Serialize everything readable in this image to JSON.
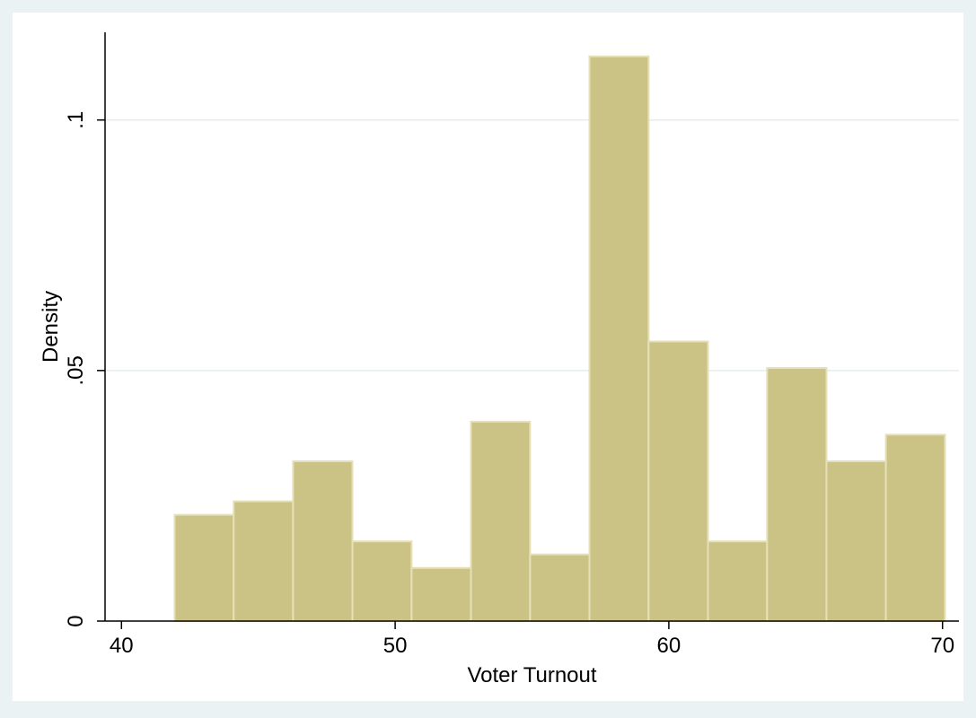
{
  "chart_data": {
    "type": "bar",
    "title": "",
    "xlabel": "Voter Turnout",
    "ylabel": "Density",
    "xlim": [
      39.4,
      70.6
    ],
    "ylim": [
      0,
      0.1175
    ],
    "x_ticks": [
      {
        "value": 40,
        "label": "40"
      },
      {
        "value": 50,
        "label": "50"
      },
      {
        "value": 60,
        "label": "60"
      },
      {
        "value": 70,
        "label": "70"
      }
    ],
    "y_ticks": [
      {
        "value": 0,
        "label": "0"
      },
      {
        "value": 0.05,
        "label": ".05"
      },
      {
        "value": 0.1,
        "label": ".1"
      }
    ],
    "grid": true,
    "bins": [
      {
        "start": 41.94,
        "end": 44.1,
        "density": 0.0212
      },
      {
        "start": 44.1,
        "end": 46.27,
        "density": 0.0239
      },
      {
        "start": 46.27,
        "end": 48.44,
        "density": 0.0319
      },
      {
        "start": 48.44,
        "end": 50.6,
        "density": 0.0159
      },
      {
        "start": 50.6,
        "end": 52.77,
        "density": 0.0106
      },
      {
        "start": 52.77,
        "end": 54.93,
        "density": 0.0398
      },
      {
        "start": 54.93,
        "end": 57.1,
        "density": 0.0133
      },
      {
        "start": 57.1,
        "end": 59.26,
        "density": 0.1127
      },
      {
        "start": 59.26,
        "end": 61.43,
        "density": 0.0558
      },
      {
        "start": 61.43,
        "end": 63.59,
        "density": 0.0159
      },
      {
        "start": 63.59,
        "end": 65.76,
        "density": 0.0505
      },
      {
        "start": 65.76,
        "end": 67.93,
        "density": 0.0319
      },
      {
        "start": 67.93,
        "end": 70.09,
        "density": 0.0372
      }
    ],
    "colors": {
      "background": "#eaf2f3",
      "plot_background": "#ffffff",
      "bar_fill": "#cbc386",
      "bar_stroke": "#e6e0b8",
      "grid": "#e6eced",
      "axis": "#000000"
    }
  }
}
